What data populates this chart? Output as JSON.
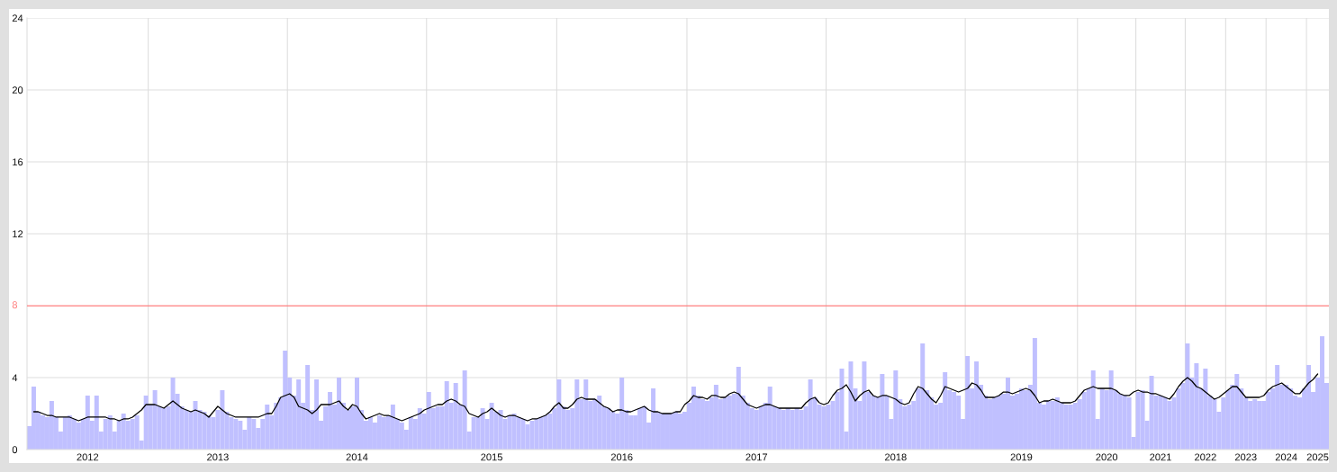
{
  "chart_data": {
    "type": "bar",
    "categories": [
      null,
      null,
      null,
      null,
      null,
      null,
      null,
      null,
      null,
      null,
      null,
      null,
      null,
      "2012",
      null,
      null,
      null,
      null,
      null,
      null,
      null,
      null,
      null,
      null,
      null,
      null,
      null,
      null,
      null,
      null,
      null,
      null,
      null,
      null,
      null,
      null,
      null,
      null,
      null,
      null,
      null,
      null,
      "2013",
      null,
      null,
      null,
      null,
      null,
      null,
      null,
      null,
      null,
      null,
      null,
      null,
      null,
      null,
      null,
      null,
      null,
      null,
      null,
      null,
      null,
      null,
      null,
      null,
      null,
      null,
      null,
      null,
      null,
      null,
      "2014",
      null,
      null,
      null,
      null,
      null,
      null,
      null,
      null,
      null,
      null,
      null,
      null,
      null,
      null,
      null,
      null,
      null,
      null,
      null,
      null,
      null,
      null,
      null,
      null,
      null,
      null,
      null,
      null,
      null,
      "2015",
      null,
      null,
      null,
      null,
      null,
      null,
      null,
      null,
      null,
      null,
      null,
      null,
      null,
      null,
      null,
      null,
      null,
      null,
      null,
      null,
      null,
      null,
      null,
      null,
      null,
      null,
      null,
      null,
      "2016",
      null,
      null,
      null,
      null,
      null,
      null,
      null,
      null,
      null,
      null,
      null,
      null,
      null,
      null,
      null,
      null,
      null,
      null,
      null,
      null,
      null,
      null,
      null,
      null,
      null,
      null,
      null,
      null,
      null,
      "2017",
      null,
      null,
      null,
      null,
      null,
      null,
      null,
      null,
      null,
      null,
      null,
      null,
      null,
      null,
      null,
      null,
      null,
      null,
      null,
      null,
      null,
      null,
      null,
      null,
      null,
      null,
      null,
      null,
      null,
      null,
      "2018",
      null,
      null,
      null,
      null,
      null,
      null,
      null,
      null,
      null,
      null,
      null,
      null,
      null,
      null,
      null,
      null,
      null,
      null,
      null,
      null,
      null,
      null,
      null,
      null,
      null,
      null,
      null,
      "2019",
      null,
      null,
      null,
      null,
      null,
      null,
      null,
      null,
      null,
      null,
      null,
      null,
      null,
      null,
      null,
      null,
      null,
      null,
      "2020",
      null,
      null,
      null,
      null,
      null,
      null,
      null,
      null,
      null,
      null,
      null,
      "2021",
      null,
      null,
      null,
      null,
      null,
      null,
      null,
      null,
      null,
      "2022",
      null,
      null,
      null,
      null,
      null,
      null,
      null,
      null,
      "2023",
      null,
      null,
      null,
      null,
      null,
      null,
      null,
      null,
      "2024",
      null,
      null,
      null,
      null,
      null,
      null,
      "2025",
      null,
      null
    ],
    "series": [
      {
        "color": "#c0c0ff",
        "values": [
          1.3,
          3.5,
          2.1,
          1.9,
          1.8,
          2.7,
          1.8,
          1.0,
          1.8,
          1.9,
          1.7,
          1.5,
          1.7,
          3.0,
          1.6,
          3.0,
          1.0,
          1.7,
          1.9,
          1.0,
          1.6,
          2.0,
          1.6,
          1.7,
          1.9,
          0.5,
          3.0,
          2.5,
          3.3,
          2.4,
          2.3,
          2.4,
          4.0,
          3.1,
          2.4,
          2.2,
          2.1,
          2.7,
          2.2,
          2.1,
          1.9,
          1.8,
          2.2,
          3.3,
          2.1,
          1.8,
          1.7,
          1.6,
          1.1,
          1.8,
          1.7,
          1.2,
          1.7,
          2.5,
          1.9,
          2.6,
          2.9,
          5.5,
          4.0,
          3.0,
          3.9,
          2.6,
          4.7,
          2.2,
          3.9,
          1.6,
          2.4,
          3.2,
          2.5,
          4.0,
          2.6,
          2.2,
          2.4,
          4.0,
          2.2,
          1.6,
          1.8,
          1.5,
          1.9,
          1.8,
          1.9,
          2.5,
          1.7,
          1.5,
          1.1,
          1.8,
          1.7,
          2.3,
          2.0,
          3.2,
          2.3,
          2.4,
          2.4,
          3.8,
          2.6,
          3.7,
          2.5,
          4.4,
          1.0,
          1.8,
          1.8,
          2.3,
          1.7,
          2.6,
          2.1,
          2.2,
          1.7,
          1.9,
          2.0,
          1.8,
          1.7,
          1.4,
          1.6,
          1.7,
          1.8,
          1.9,
          2.0,
          2.3,
          3.9,
          2.4,
          2.2,
          2.3,
          3.9,
          2.8,
          3.9,
          2.7,
          2.8,
          3.0,
          2.4,
          2.3,
          2.1,
          2.0,
          4.0,
          2.2,
          1.9,
          1.9,
          2.3,
          2.4,
          1.5,
          3.4,
          2.1,
          2.0,
          2.0,
          2.0,
          2.1,
          2.0,
          2.1,
          2.6,
          3.5,
          3.0,
          2.8,
          2.7,
          2.9,
          3.6,
          2.8,
          2.9,
          3.0,
          3.1,
          4.6,
          3.0,
          2.6,
          2.3,
          2.2,
          2.4,
          2.6,
          3.5,
          2.4,
          2.3,
          2.2,
          2.3,
          2.2,
          2.3,
          2.2,
          2.4,
          3.9,
          2.9,
          2.5,
          2.4,
          2.5,
          2.7,
          3.2,
          4.5,
          1.0,
          4.9,
          3.4,
          2.7,
          4.9,
          3.2,
          3.0,
          2.9,
          4.2,
          3.0,
          1.7,
          4.4,
          2.8,
          2.4,
          2.5,
          2.7,
          3.4,
          5.9,
          3.3,
          2.9,
          2.5,
          2.6,
          4.3,
          3.3,
          3.2,
          3.0,
          1.7,
          5.2,
          3.4,
          4.9,
          3.6,
          3.0,
          2.8,
          2.9,
          3.0,
          3.1,
          4.0,
          3.0,
          3.1,
          3.4,
          3.3,
          3.6,
          6.2,
          2.6,
          2.5,
          2.7,
          2.7,
          2.9,
          2.6,
          2.5,
          2.5,
          2.6,
          2.8,
          3.2,
          3.4,
          4.4,
          1.7,
          3.4,
          3.3,
          4.4,
          3.3,
          3.1,
          3.0,
          2.9,
          0.7,
          3.2,
          3.3,
          1.6,
          4.1,
          3.0,
          3.0,
          2.9,
          2.7,
          2.9,
          3.4,
          3.7,
          5.9,
          4.0,
          4.8,
          3.4,
          4.5,
          3.0,
          2.8,
          2.1,
          2.9,
          3.3,
          3.6,
          4.2,
          3.4,
          2.9,
          2.7,
          2.8,
          2.7,
          2.7,
          3.2,
          3.4,
          4.7,
          3.6,
          3.6,
          3.4,
          3.0,
          2.9,
          3.4,
          4.7,
          3.2,
          4.0,
          6.3,
          3.7
        ]
      },
      {
        "type": "line",
        "color": "#000000",
        "values": [
          null,
          2.1,
          2.1,
          2.0,
          1.9,
          1.9,
          1.8,
          1.8,
          1.8,
          1.8,
          1.7,
          1.6,
          1.7,
          1.8,
          1.8,
          1.8,
          1.8,
          1.8,
          1.7,
          1.7,
          1.6,
          1.7,
          1.7,
          1.8,
          2.0,
          2.2,
          2.5,
          2.5,
          2.5,
          2.4,
          2.3,
          2.5,
          2.7,
          2.5,
          2.3,
          2.2,
          2.1,
          2.2,
          2.1,
          2.0,
          1.8,
          2.1,
          2.4,
          2.2,
          2.0,
          1.9,
          1.8,
          1.8,
          1.8,
          1.8,
          1.8,
          1.8,
          1.9,
          2.0,
          2.0,
          2.4,
          2.9,
          3.0,
          3.1,
          2.9,
          2.4,
          2.3,
          2.2,
          2.0,
          2.2,
          2.5,
          2.5,
          2.5,
          2.6,
          2.7,
          2.4,
          2.2,
          2.5,
          2.4,
          2.0,
          1.7,
          1.8,
          1.9,
          2.0,
          1.9,
          1.9,
          1.8,
          1.7,
          1.6,
          1.7,
          1.8,
          1.9,
          2.0,
          2.2,
          2.3,
          2.4,
          2.5,
          2.5,
          2.7,
          2.8,
          2.7,
          2.5,
          2.4,
          2.0,
          1.9,
          1.8,
          2.0,
          2.1,
          2.3,
          2.1,
          1.9,
          1.8,
          1.9,
          1.9,
          1.8,
          1.7,
          1.6,
          1.7,
          1.7,
          1.8,
          1.9,
          2.1,
          2.4,
          2.6,
          2.3,
          2.3,
          2.5,
          2.8,
          2.9,
          2.8,
          2.8,
          2.8,
          2.6,
          2.4,
          2.3,
          2.1,
          2.2,
          2.2,
          2.1,
          2.1,
          2.2,
          2.3,
          2.4,
          2.2,
          2.1,
          2.1,
          2.0,
          2.0,
          2.0,
          2.1,
          2.1,
          2.5,
          2.7,
          3.0,
          2.9,
          2.9,
          2.8,
          3.0,
          3.0,
          2.9,
          2.9,
          3.1,
          3.2,
          3.1,
          2.8,
          2.5,
          2.4,
          2.3,
          2.4,
          2.5,
          2.5,
          2.4,
          2.3,
          2.3,
          2.3,
          2.3,
          2.3,
          2.3,
          2.6,
          2.8,
          2.9,
          2.6,
          2.5,
          2.6,
          3.0,
          3.3,
          3.4,
          3.6,
          3.2,
          2.7,
          3.0,
          3.2,
          3.3,
          3.0,
          2.9,
          3.0,
          3.0,
          2.9,
          2.8,
          2.6,
          2.5,
          2.6,
          3.1,
          3.5,
          3.4,
          3.1,
          2.8,
          2.6,
          3.0,
          3.5,
          3.4,
          3.3,
          3.2,
          3.3,
          3.4,
          3.7,
          3.6,
          3.3,
          2.9,
          2.9,
          2.9,
          3.0,
          3.2,
          3.2,
          3.1,
          3.2,
          3.3,
          3.4,
          3.3,
          3.0,
          2.6,
          2.7,
          2.7,
          2.8,
          2.7,
          2.6,
          2.6,
          2.6,
          2.7,
          3.0,
          3.3,
          3.4,
          3.5,
          3.4,
          3.4,
          3.4,
          3.4,
          3.3,
          3.1,
          3.0,
          3.0,
          3.2,
          3.3,
          3.2,
          3.2,
          3.1,
          3.1,
          3.0,
          2.9,
          2.8,
          3.1,
          3.5,
          3.8,
          4.0,
          3.8,
          3.5,
          3.4,
          3.2,
          3.0,
          2.8,
          2.9,
          3.1,
          3.3,
          3.5,
          3.5,
          3.2,
          2.9,
          2.9,
          2.9,
          2.9,
          3.0,
          3.3,
          3.5,
          3.6,
          3.7,
          3.5,
          3.3,
          3.1,
          3.1,
          3.4,
          3.7,
          3.9,
          4.2,
          null,
          null
        ]
      }
    ],
    "ylim": [
      0,
      24
    ],
    "yticks": [
      0,
      4,
      12,
      16,
      20,
      24
    ],
    "grid": true,
    "ref_lines": [
      {
        "axis": "y",
        "value": 8,
        "label": "8",
        "color": "#ff7f7f"
      }
    ]
  }
}
